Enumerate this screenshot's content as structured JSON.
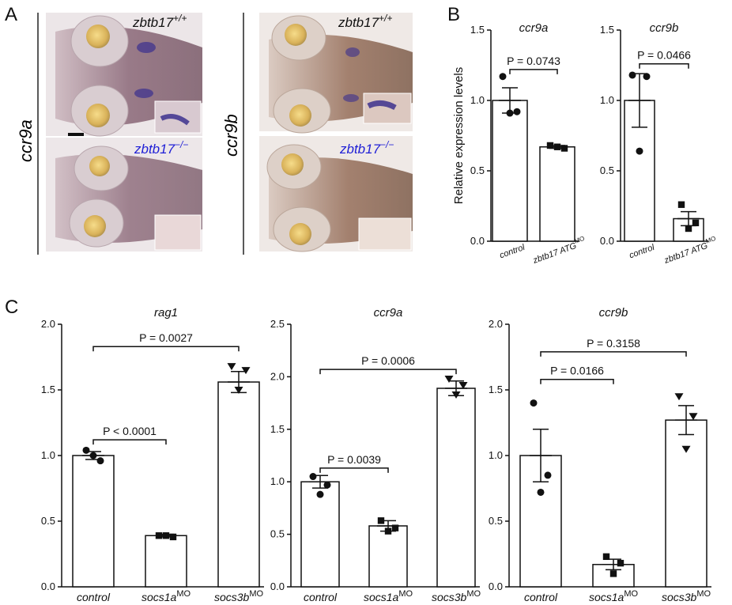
{
  "panel_letters": [
    "A",
    "B",
    "C"
  ],
  "panel_a": {
    "left_label": "ccr9a",
    "right_label": "ccr9b",
    "wt_label_base": "zbtb17",
    "wt_label_sup": "+/+",
    "ko_label_base": "zbtb17",
    "ko_label_sup": "−/−",
    "colors": {
      "wt": "#111111",
      "ko": "#1f1fd6"
    }
  },
  "chart_data": [
    {
      "id": "b-ccr9a",
      "panel": "B",
      "type": "bar",
      "title": "ccr9a",
      "ylabel": "Relative expression levels",
      "ylim": [
        0,
        1.5
      ],
      "yticks": [
        "0.0",
        "0.5",
        "1.0",
        "1.5"
      ],
      "categories": [
        "control",
        "zbtb17 ATG"
      ],
      "category_sup": [
        "",
        "MO"
      ],
      "values": [
        1.0,
        0.67
      ],
      "errors": [
        0.09,
        0.01
      ],
      "markers": [
        "circle",
        "square"
      ],
      "points": [
        [
          1.17,
          0.92,
          0.91
        ],
        [
          0.68,
          0.66,
          0.67
        ]
      ],
      "comparisons": [
        {
          "from": 0,
          "to": 1,
          "label": "P = 0.0743",
          "y": 1.22
        }
      ]
    },
    {
      "id": "b-ccr9b",
      "panel": "B",
      "type": "bar",
      "title": "ccr9b",
      "ylabel": "",
      "ylim": [
        0,
        1.5
      ],
      "yticks": [
        "0.0",
        "0.5",
        "1.0",
        "1.5"
      ],
      "categories": [
        "control",
        "zbtb17 ATG"
      ],
      "category_sup": [
        "",
        "MO"
      ],
      "values": [
        1.0,
        0.16
      ],
      "errors": [
        0.19,
        0.05
      ],
      "markers": [
        "circle",
        "square"
      ],
      "points": [
        [
          1.18,
          1.17,
          0.64
        ],
        [
          0.26,
          0.13,
          0.09
        ]
      ],
      "comparisons": [
        {
          "from": 0,
          "to": 1,
          "label": "P = 0.0466",
          "y": 1.26
        }
      ]
    },
    {
      "id": "c-rag1",
      "panel": "C",
      "type": "bar",
      "title": "rag1",
      "ylabel": "",
      "ylim": [
        0,
        2.0
      ],
      "yticks": [
        "0.0",
        "0.5",
        "1.0",
        "1.5",
        "2.0"
      ],
      "categories": [
        "control",
        "socs1a",
        "socs3b"
      ],
      "category_sup": [
        "",
        "MO",
        "MO"
      ],
      "values": [
        1.0,
        0.39,
        1.56
      ],
      "errors": [
        0.03,
        0.01,
        0.08
      ],
      "markers": [
        "circle",
        "square",
        "triangle"
      ],
      "points": [
        [
          1.04,
          0.96,
          1.0
        ],
        [
          0.39,
          0.38,
          0.39
        ],
        [
          1.68,
          1.65,
          1.5
        ]
      ],
      "comparisons": [
        {
          "from": 0,
          "to": 1,
          "label": "P < 0.0001",
          "y": 1.12
        },
        {
          "from": 0,
          "to": 2,
          "label": "P = 0.0027",
          "y": 1.83
        }
      ]
    },
    {
      "id": "c-ccr9a",
      "panel": "C",
      "type": "bar",
      "title": "ccr9a",
      "ylabel": "",
      "ylim": [
        0,
        2.5
      ],
      "yticks": [
        "0.0",
        "0.5",
        "1.0",
        "1.5",
        "2.0",
        "2.5"
      ],
      "categories": [
        "control",
        "socs1a",
        "socs3b"
      ],
      "category_sup": [
        "",
        "MO",
        "MO"
      ],
      "values": [
        1.0,
        0.58,
        1.89
      ],
      "errors": [
        0.06,
        0.05,
        0.07
      ],
      "markers": [
        "circle",
        "square",
        "triangle"
      ],
      "points": [
        [
          1.05,
          0.97,
          0.88
        ],
        [
          0.63,
          0.56,
          0.53
        ],
        [
          1.98,
          1.92,
          1.83
        ]
      ],
      "comparisons": [
        {
          "from": 0,
          "to": 1,
          "label": "P = 0.0039",
          "y": 1.13
        },
        {
          "from": 0,
          "to": 2,
          "label": "P = 0.0006",
          "y": 2.07
        }
      ]
    },
    {
      "id": "c-ccr9b",
      "panel": "C",
      "type": "bar",
      "title": "ccr9b",
      "ylabel": "",
      "ylim": [
        0,
        2.0
      ],
      "yticks": [
        "0.0",
        "0.5",
        "1.0",
        "1.5",
        "2.0"
      ],
      "categories": [
        "control",
        "socs1a",
        "socs3b"
      ],
      "category_sup": [
        "",
        "MO",
        "MO"
      ],
      "values": [
        1.0,
        0.17,
        1.27
      ],
      "errors": [
        0.2,
        0.04,
        0.11
      ],
      "markers": [
        "circle",
        "square",
        "triangle"
      ],
      "points": [
        [
          1.4,
          0.85,
          0.72
        ],
        [
          0.23,
          0.18,
          0.1
        ],
        [
          1.45,
          1.3,
          1.05
        ]
      ],
      "comparisons": [
        {
          "from": 0,
          "to": 1,
          "label": "P = 0.0166",
          "y": 1.58
        },
        {
          "from": 0,
          "to": 2,
          "label": "P = 0.3158",
          "y": 1.79
        }
      ]
    }
  ]
}
